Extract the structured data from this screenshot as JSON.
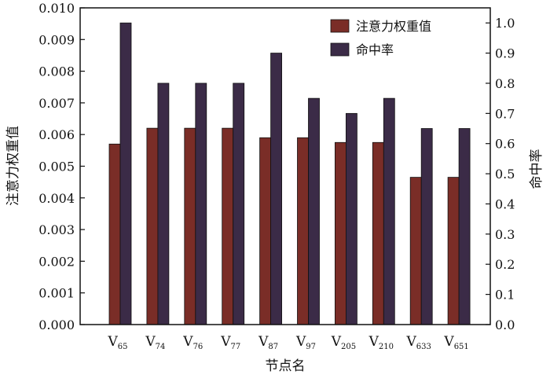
{
  "chart_data": {
    "type": "bar",
    "title": "",
    "xlabel": "节点名",
    "ylabel_left": "注意力权重值",
    "ylabel_right": "命中率",
    "categories": [
      {
        "base": "V",
        "sub": "65"
      },
      {
        "base": "V",
        "sub": "74"
      },
      {
        "base": "V",
        "sub": "76"
      },
      {
        "base": "V",
        "sub": "77"
      },
      {
        "base": "V",
        "sub": "87"
      },
      {
        "base": "V",
        "sub": "97"
      },
      {
        "base": "V",
        "sub": "205"
      },
      {
        "base": "V",
        "sub": "210"
      },
      {
        "base": "V",
        "sub": "633"
      },
      {
        "base": "V",
        "sub": "651"
      }
    ],
    "ylim_left": [
      0,
      0.01
    ],
    "ylim_right": [
      0,
      1.05
    ],
    "yticks_left": [
      "0.000",
      "0.001",
      "0.002",
      "0.003",
      "0.004",
      "0.005",
      "0.006",
      "0.007",
      "0.008",
      "0.009",
      "0.010"
    ],
    "yticks_right": [
      "0.0",
      "0.1",
      "0.2",
      "0.3",
      "0.4",
      "0.5",
      "0.6",
      "0.7",
      "0.8",
      "0.9",
      "1.0"
    ],
    "grid": false,
    "legend_position": "top-right",
    "series": [
      {
        "name": "注意力权重值",
        "axis": "left",
        "color": "#7a2d27",
        "values": [
          0.0057,
          0.0062,
          0.0062,
          0.0062,
          0.0059,
          0.0059,
          0.00575,
          0.00575,
          0.00465,
          0.00465
        ]
      },
      {
        "name": "命中率",
        "axis": "right",
        "color": "#3b2b47",
        "values": [
          1.0,
          0.8,
          0.8,
          0.8,
          0.9,
          0.75,
          0.7,
          0.75,
          0.65,
          0.65
        ]
      }
    ]
  }
}
